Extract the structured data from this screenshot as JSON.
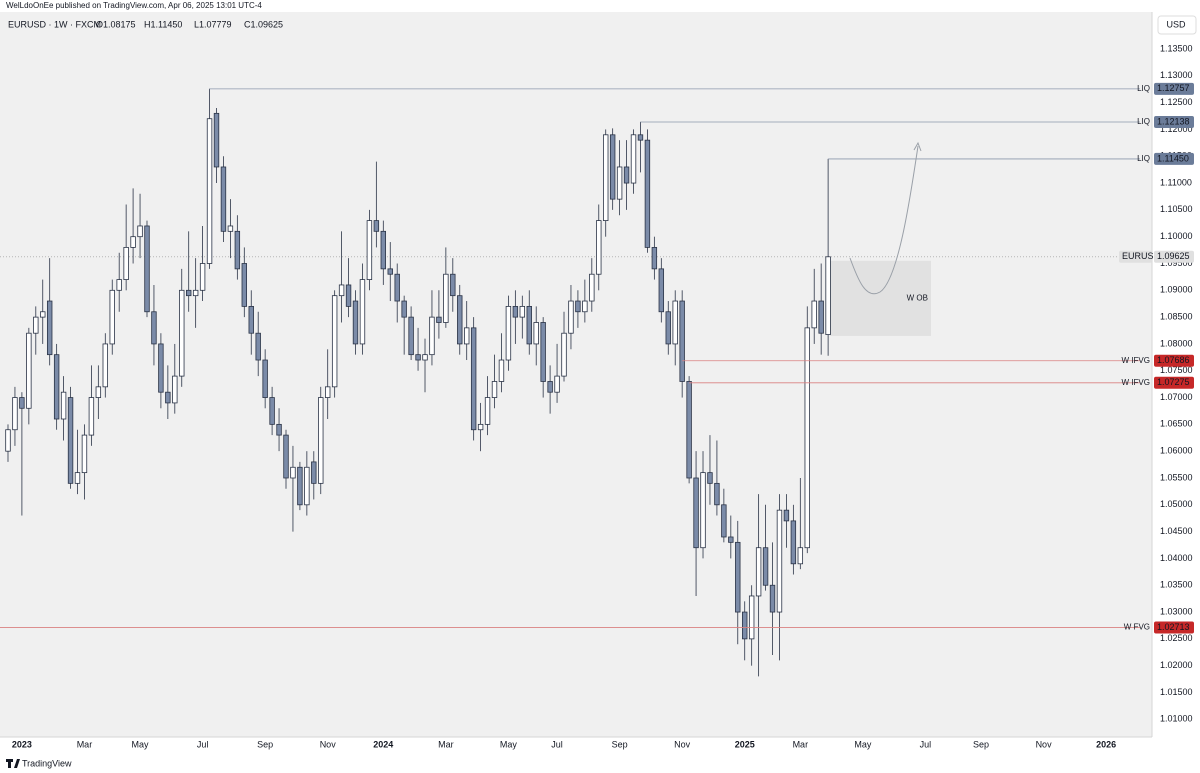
{
  "header": {
    "published": "WelLdoOnEe published on TradingView.com, Apr 06, 2025 13:01 UTC-4",
    "brand": "TradingView"
  },
  "chart_data": {
    "type": "candlestick",
    "symbol": "EURUSD · 1W · FXCM",
    "ohlc": [
      "O1.08175",
      "H1.11450",
      "L1.07779",
      "C1.09625"
    ],
    "currency": "USD",
    "up_color": "#ffffff",
    "down_color": "#7b8ba8",
    "grid": false,
    "xlim": [
      -1.15,
      164.6
    ],
    "xticks": [
      {
        "value": 2,
        "label": "2023"
      },
      {
        "value": 11,
        "label": "Mar"
      },
      {
        "value": 19,
        "label": "May"
      },
      {
        "value": 28,
        "label": "Jul"
      },
      {
        "value": 37,
        "label": "Sep"
      },
      {
        "value": 46,
        "label": "Nov"
      },
      {
        "value": 54,
        "label": "2024"
      },
      {
        "value": 63,
        "label": "Mar"
      },
      {
        "value": 72,
        "label": "May"
      },
      {
        "value": 79,
        "label": "Jul"
      },
      {
        "value": 88,
        "label": "Sep"
      },
      {
        "value": 97,
        "label": "Nov"
      },
      {
        "value": 106,
        "label": "2025"
      },
      {
        "value": 114,
        "label": "Mar"
      },
      {
        "value": 123,
        "label": "May"
      },
      {
        "value": 132,
        "label": "Jul"
      },
      {
        "value": 140,
        "label": "Sep"
      },
      {
        "value": 149,
        "label": "Nov"
      },
      {
        "value": 158,
        "label": "2026"
      }
    ],
    "ylim": [
      1.0067,
      1.1419
    ],
    "yticks": [
      {
        "value": 1.135,
        "label": "1.13500"
      },
      {
        "value": 1.13,
        "label": "1.13000"
      },
      {
        "value": 1.125,
        "label": "1.12500"
      },
      {
        "value": 1.12,
        "label": "1.12000"
      },
      {
        "value": 1.115,
        "label": "1.11500"
      },
      {
        "value": 1.11,
        "label": "1.11000"
      },
      {
        "value": 1.105,
        "label": "1.10500"
      },
      {
        "value": 1.1,
        "label": "1.10000"
      },
      {
        "value": 1.095,
        "label": "1.09500"
      },
      {
        "value": 1.09,
        "label": "1.09000"
      },
      {
        "value": 1.085,
        "label": "1.08500"
      },
      {
        "value": 1.08,
        "label": "1.08000"
      },
      {
        "value": 1.075,
        "label": "1.07500"
      },
      {
        "value": 1.07,
        "label": "1.07000"
      },
      {
        "value": 1.065,
        "label": "1.06500"
      },
      {
        "value": 1.06,
        "label": "1.06000"
      },
      {
        "value": 1.055,
        "label": "1.05500"
      },
      {
        "value": 1.05,
        "label": "1.05000"
      },
      {
        "value": 1.045,
        "label": "1.04500"
      },
      {
        "value": 1.04,
        "label": "1.04000"
      },
      {
        "value": 1.035,
        "label": "1.03500"
      },
      {
        "value": 1.03,
        "label": "1.03000"
      },
      {
        "value": 1.025,
        "label": "1.02500"
      },
      {
        "value": 1.02,
        "label": "1.02000"
      },
      {
        "value": 1.015,
        "label": "1.01500"
      },
      {
        "value": 1.01,
        "label": "1.01000"
      }
    ],
    "open": [
      1.06,
      1.064,
      1.07,
      1.068,
      1.082,
      1.085,
      1.088,
      1.078,
      1.066,
      1.07,
      1.054,
      1.056,
      1.063,
      1.07,
      1.072,
      1.08,
      1.09,
      1.092,
      1.098,
      1.1,
      1.102,
      1.086,
      1.08,
      1.071,
      1.069,
      1.074,
      1.09,
      1.089,
      1.09,
      1.095,
      1.123,
      1.113,
      1.101,
      1.101,
      1.095,
      1.087,
      1.082,
      1.077,
      1.07,
      1.065,
      1.063,
      1.055,
      1.057,
      1.05,
      1.058,
      1.054,
      1.07,
      1.072,
      1.089,
      1.091,
      1.088,
      1.08,
      1.092,
      1.103,
      1.101,
      1.094,
      1.093,
      1.088,
      1.085,
      1.078,
      1.077,
      1.078,
      1.085,
      1.084,
      1.093,
      1.089,
      1.08,
      1.083,
      1.064,
      1.065,
      1.07,
      1.073,
      1.077,
      1.087,
      1.085,
      1.087,
      1.08,
      1.084,
      1.073,
      1.071,
      1.074,
      1.082,
      1.088,
      1.086,
      1.088,
      1.093,
      1.103,
      1.119,
      1.107,
      1.113,
      1.11,
      1.119,
      1.118,
      1.098,
      1.094,
      1.086,
      1.08,
      1.088,
      1.073,
      1.055,
      1.042,
      1.056,
      1.054,
      1.05,
      1.044,
      1.043,
      1.03,
      1.025,
      1.033,
      1.042,
      1.035,
      1.03,
      1.049,
      1.047,
      1.039,
      1.042,
      1.083,
      1.088,
      1.08175
    ],
    "high": [
      1.065,
      1.072,
      1.071,
      1.083,
      1.087,
      1.092,
      1.096,
      1.08,
      1.074,
      1.072,
      1.064,
      1.065,
      1.076,
      1.076,
      1.082,
      1.092,
      1.097,
      1.106,
      1.109,
      1.108,
      1.103,
      1.091,
      1.082,
      1.076,
      1.08,
      1.094,
      1.101,
      1.096,
      1.102,
      1.1276,
      1.124,
      1.115,
      1.107,
      1.104,
      1.098,
      1.09,
      1.086,
      1.079,
      1.072,
      1.068,
      1.064,
      1.061,
      1.058,
      1.06,
      1.06,
      1.072,
      1.079,
      1.09,
      1.101,
      1.096,
      1.09,
      1.095,
      1.105,
      1.114,
      1.103,
      1.099,
      1.095,
      1.089,
      1.087,
      1.083,
      1.081,
      1.09,
      1.09,
      1.098,
      1.096,
      1.091,
      1.088,
      1.085,
      1.069,
      1.074,
      1.078,
      1.082,
      1.089,
      1.09,
      1.089,
      1.09,
      1.087,
      1.085,
      1.076,
      1.08,
      1.086,
      1.091,
      1.09,
      1.092,
      1.096,
      1.106,
      1.12,
      1.1202,
      1.118,
      1.118,
      1.12,
      1.1214,
      1.12,
      1.1,
      1.096,
      1.088,
      1.09,
      1.09,
      1.074,
      1.06,
      1.06,
      1.063,
      1.062,
      1.053,
      1.048,
      1.047,
      1.032,
      1.035,
      1.052,
      1.05,
      1.043,
      1.052,
      1.052,
      1.05,
      1.055,
      1.087,
      1.094,
      1.095,
      1.1145
    ],
    "low": [
      1.058,
      1.061,
      1.048,
      1.065,
      1.078,
      1.08,
      1.076,
      1.064,
      1.062,
      1.053,
      1.052,
      1.051,
      1.061,
      1.066,
      1.07,
      1.078,
      1.086,
      1.09,
      1.095,
      1.096,
      1.085,
      1.076,
      1.068,
      1.066,
      1.067,
      1.072,
      1.086,
      1.083,
      1.088,
      1.094,
      1.11,
      1.099,
      1.096,
      1.092,
      1.085,
      1.078,
      1.074,
      1.068,
      1.063,
      1.06,
      1.053,
      1.045,
      1.049,
      1.048,
      1.051,
      1.052,
      1.066,
      1.07,
      1.084,
      1.085,
      1.078,
      1.078,
      1.09,
      1.098,
      1.091,
      1.088,
      1.084,
      1.078,
      1.077,
      1.075,
      1.071,
      1.076,
      1.081,
      1.083,
      1.086,
      1.078,
      1.077,
      1.062,
      1.06,
      1.063,
      1.068,
      1.071,
      1.075,
      1.08,
      1.081,
      1.078,
      1.076,
      1.07,
      1.067,
      1.069,
      1.073,
      1.079,
      1.083,
      1.084,
      1.086,
      1.09,
      1.1,
      1.105,
      1.104,
      1.105,
      1.108,
      1.112,
      1.097,
      1.092,
      1.084,
      1.078,
      1.076,
      1.07,
      1.054,
      1.033,
      1.04,
      1.05,
      1.048,
      1.043,
      1.04,
      1.024,
      1.021,
      1.02,
      1.018,
      1.034,
      1.022,
      1.021,
      1.042,
      1.037,
      1.038,
      1.041,
      1.08,
      1.078,
      1.07779
    ],
    "close": [
      1.064,
      1.07,
      1.068,
      1.082,
      1.085,
      1.086,
      1.078,
      1.066,
      1.071,
      1.054,
      1.056,
      1.063,
      1.07,
      1.072,
      1.08,
      1.09,
      1.092,
      1.098,
      1.1,
      1.102,
      1.086,
      1.08,
      1.071,
      1.069,
      1.074,
      1.09,
      1.089,
      1.09,
      1.095,
      1.122,
      1.113,
      1.101,
      1.102,
      1.094,
      1.087,
      1.082,
      1.077,
      1.07,
      1.065,
      1.063,
      1.055,
      1.057,
      1.05,
      1.057,
      1.054,
      1.07,
      1.072,
      1.089,
      1.091,
      1.087,
      1.08,
      1.092,
      1.103,
      1.101,
      1.094,
      1.093,
      1.088,
      1.085,
      1.078,
      1.077,
      1.078,
      1.085,
      1.084,
      1.093,
      1.089,
      1.08,
      1.083,
      1.064,
      1.065,
      1.07,
      1.073,
      1.077,
      1.087,
      1.085,
      1.087,
      1.08,
      1.084,
      1.073,
      1.071,
      1.074,
      1.082,
      1.088,
      1.086,
      1.088,
      1.093,
      1.103,
      1.119,
      1.107,
      1.113,
      1.11,
      1.119,
      1.118,
      1.098,
      1.094,
      1.086,
      1.08,
      1.088,
      1.073,
      1.055,
      1.042,
      1.056,
      1.054,
      1.05,
      1.044,
      1.043,
      1.03,
      1.025,
      1.033,
      1.042,
      1.035,
      1.03,
      1.049,
      1.047,
      1.039,
      1.042,
      1.083,
      1.088,
      1.082,
      1.09625
    ],
    "levels": [
      {
        "name": "LIQ",
        "value": 1.12757,
        "label": "1.12757",
        "color": "#6b7c99"
      },
      {
        "name": "LIQ",
        "value": 1.12138,
        "label": "1.12138",
        "color": "#6b7c99"
      },
      {
        "name": "LIQ",
        "value": 1.1145,
        "label": "1.11450",
        "color": "#6b7c99"
      },
      {
        "name": "W IFVG",
        "value": 1.07686,
        "label": "1.07686",
        "color": "#c62828"
      },
      {
        "name": "W IFVG",
        "value": 1.07275,
        "label": "1.07275",
        "color": "#c62828"
      },
      {
        "name": "W FVG",
        "value": 1.02713,
        "label": "1.02713",
        "color": "#c62828"
      }
    ],
    "last": {
      "name": "EURUSD",
      "value": 1.09625,
      "label": "1.09625"
    },
    "zone": {
      "label": "W OB",
      "top": 1.0955,
      "bottom": 1.0815
    }
  }
}
